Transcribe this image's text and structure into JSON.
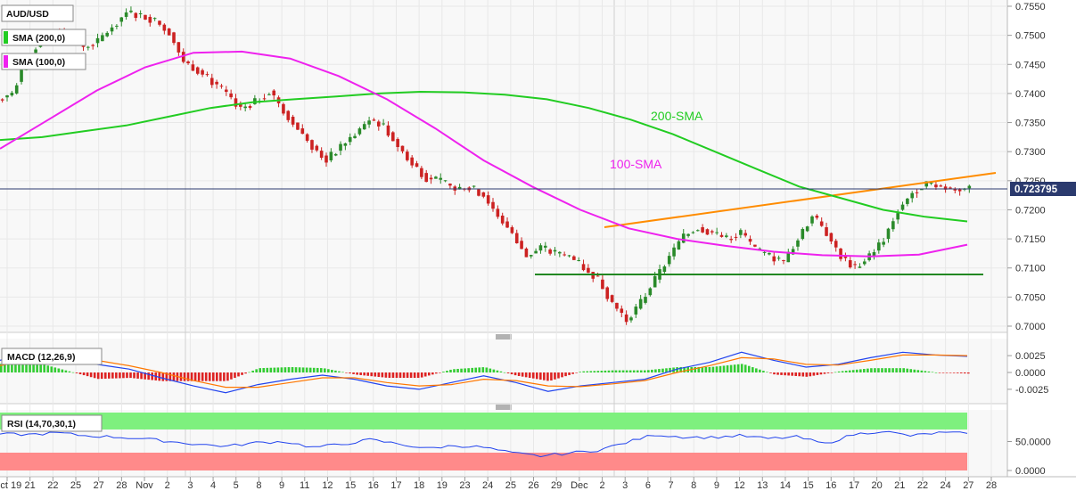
{
  "instrument": "AUD/USD",
  "legend": {
    "sma200": "SMA (200,0)",
    "sma100": "SMA (100,0)",
    "macd": "MACD (12,26,9)",
    "rsi": "RSI (14,70,30,1)"
  },
  "annotations": {
    "sma200": "200-SMA",
    "sma100": "100-SMA"
  },
  "current_price": "0.723795",
  "price_axis": [
    "0.7550",
    "0.7500",
    "0.7450",
    "0.7400",
    "0.7350",
    "0.7300",
    "0.7250",
    "0.7200",
    "0.7150",
    "0.7100",
    "0.7050",
    "0.7000"
  ],
  "macd_axis": [
    "0.0025",
    "0.0000",
    "-0.0025"
  ],
  "rsi_axis": [
    "50.0000",
    "0.0000"
  ],
  "x_axis": [
    "Oct 19",
    "21",
    "22",
    "25",
    "27",
    "28",
    "Nov",
    "2",
    "3",
    "4",
    "5",
    "8",
    "9",
    "11",
    "12",
    "15",
    "16",
    "17",
    "18",
    "19",
    "23",
    "24",
    "25",
    "26",
    "29",
    "Dec",
    "2",
    "3",
    "6",
    "7",
    "8",
    "9",
    "12",
    "13",
    "14",
    "15",
    "16",
    "17",
    "20",
    "21",
    "22",
    "24",
    "27",
    "28"
  ],
  "colors": {
    "sma200": "#22cc22",
    "sma100": "#ee22ee",
    "trend": "#ff8c00",
    "support": "#228822",
    "bull": "#2a8a2a",
    "bear": "#cc2222",
    "macd": "#2244ee",
    "signal": "#ff7700",
    "rsi": "#2244ee",
    "ob_zone": "#7ef07e",
    "os_zone": "#ff8a8a"
  },
  "chart_data": [
    {
      "type": "line",
      "title": "AUD/USD",
      "subtitle": "",
      "ylim": [
        0.699,
        0.756
      ],
      "series": [
        {
          "name": "AUD/USD",
          "values": [
            0.74,
            0.746,
            0.749,
            0.751,
            0.75,
            0.748,
            0.749,
            0.7515,
            0.754,
            0.7535,
            0.7525,
            0.7505,
            0.7455,
            0.744,
            0.742,
            0.74,
            0.7375,
            0.7385,
            0.7405,
            0.737,
            0.734,
            0.731,
            0.7285,
            0.731,
            0.733,
            0.7355,
            0.7345,
            0.731,
            0.728,
            0.7255,
            0.725,
            0.7235,
            0.724,
            0.7225,
            0.719,
            0.716,
            0.712,
            0.7135,
            0.7125,
            0.712,
            0.71,
            0.708,
            0.704,
            0.701,
            0.704,
            0.708,
            0.712,
            0.7155,
            0.717,
            0.716,
            0.715,
            0.716,
            0.713,
            0.712,
            0.711,
            0.715,
            0.719,
            0.716,
            0.712,
            0.71,
            0.712,
            0.715,
            0.72,
            0.723,
            0.7245,
            0.724,
            0.7235,
            0.7238
          ]
        },
        {
          "name": "SMA (200,0)",
          "values": [
            0.732,
            0.7325,
            0.7335,
            0.7345,
            0.736,
            0.7375,
            0.7385,
            0.739,
            0.7395,
            0.74,
            0.7403,
            0.7402,
            0.7398,
            0.739,
            0.7375,
            0.7355,
            0.733,
            0.73,
            0.727,
            0.724,
            0.722,
            0.72,
            0.7188,
            0.718
          ]
        },
        {
          "name": "SMA (100,0)",
          "values": [
            0.7305,
            0.7355,
            0.7405,
            0.7445,
            0.747,
            0.7472,
            0.746,
            0.743,
            0.739,
            0.734,
            0.7285,
            0.724,
            0.72,
            0.7168,
            0.715,
            0.7138,
            0.7128,
            0.7122,
            0.712,
            0.7123,
            0.714
          ]
        }
      ]
    },
    {
      "type": "bar",
      "title": "MACD (12,26,9)",
      "ylim": [
        -0.0045,
        0.0045
      ],
      "series": [
        {
          "name": "MACD",
          "values": [
            0.0018,
            0.003,
            0.0025,
            0.0012,
            0.0005,
            -0.0008,
            -0.002,
            -0.003,
            -0.0018,
            -0.001,
            -0.0004,
            -0.001,
            -0.002,
            -0.0025,
            -0.0015,
            -0.0005,
            -0.0015,
            -0.0028,
            -0.002,
            -0.0015,
            -0.001,
            0.0005,
            0.0015,
            0.003,
            0.0018,
            0.0008,
            0.0012,
            0.0022,
            0.003,
            0.0026,
            0.0024
          ]
        },
        {
          "name": "Signal",
          "values": [
            0.001,
            0.002,
            0.0023,
            0.0018,
            0.001,
            0.0,
            -0.0012,
            -0.0022,
            -0.0022,
            -0.0015,
            -0.0008,
            -0.0008,
            -0.0015,
            -0.002,
            -0.0018,
            -0.001,
            -0.0012,
            -0.002,
            -0.0021,
            -0.0017,
            -0.0012,
            0.0,
            0.001,
            0.0022,
            0.002,
            0.0012,
            0.0011,
            0.0018,
            0.0026,
            0.0026,
            0.0025
          ]
        }
      ]
    },
    {
      "type": "line",
      "title": "RSI (14,70,30,1)",
      "ylim": [
        0,
        100
      ],
      "series": [
        {
          "name": "RSI",
          "values": [
            63,
            62,
            65,
            60,
            58,
            55,
            50,
            45,
            42,
            48,
            50,
            40,
            45,
            53,
            46,
            38,
            43,
            40,
            30,
            25,
            30,
            35,
            48,
            62,
            58,
            57,
            60,
            55,
            58,
            46,
            62,
            68,
            60,
            65,
            64
          ]
        }
      ]
    }
  ]
}
